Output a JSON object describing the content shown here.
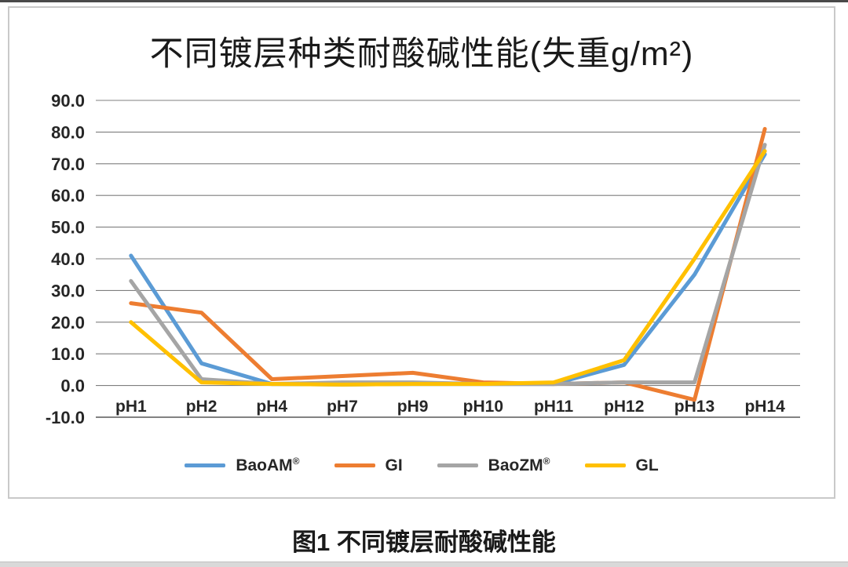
{
  "page": {
    "caption": "图1 不同镀层耐酸碱性能"
  },
  "chart_data": {
    "type": "line",
    "title": "不同镀层种类耐酸碱性能(失重g/m²)",
    "xlabel": "",
    "ylabel": "",
    "categories": [
      "pH1",
      "pH2",
      "pH4",
      "pH7",
      "pH9",
      "pH10",
      "pH11",
      "pH12",
      "pH13",
      "pH14"
    ],
    "y_ticks": [
      "90.0",
      "80.0",
      "70.0",
      "60.0",
      "50.0",
      "40.0",
      "30.0",
      "20.0",
      "10.0",
      "0.0",
      "-10.0"
    ],
    "ylim": [
      -10,
      90
    ],
    "grid": true,
    "legend_position": "bottom",
    "series": [
      {
        "name": "BaoAM",
        "suffix": "®",
        "color": "#5B9BD5",
        "values": [
          41.0,
          7.0,
          0.5,
          0.3,
          0.5,
          0.5,
          0.5,
          6.5,
          35.0,
          73.0
        ]
      },
      {
        "name": "GI",
        "suffix": "",
        "color": "#ED7D31",
        "values": [
          26.0,
          23.0,
          2.0,
          3.0,
          4.0,
          1.0,
          0.5,
          1.0,
          -4.5,
          81.0
        ]
      },
      {
        "name": "BaoZM",
        "suffix": "®",
        "color": "#A5A5A5",
        "values": [
          33.0,
          2.0,
          0.5,
          1.0,
          1.0,
          0.5,
          0.5,
          1.0,
          1.0,
          76.0
        ]
      },
      {
        "name": "GL",
        "suffix": "",
        "color": "#FFC000",
        "values": [
          20.0,
          1.0,
          0.5,
          0.3,
          0.5,
          0.5,
          1.0,
          8.0,
          40.0,
          74.0
        ]
      }
    ],
    "grid_color": "#7f7f7f",
    "axis_line_color": "#595959",
    "axis_text_color": "#262626"
  }
}
